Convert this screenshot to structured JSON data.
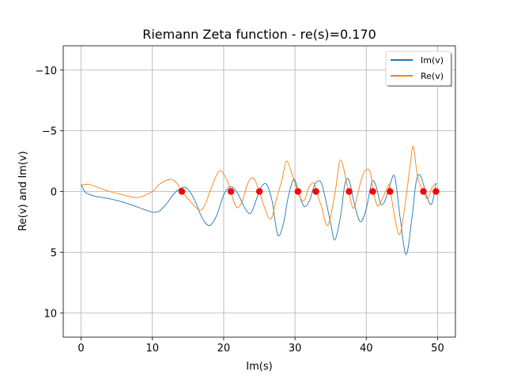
{
  "chart_data": {
    "type": "line",
    "title": "Riemann Zeta function - re(s)=0.170",
    "xlabel": "Im(s)",
    "ylabel": "Re(v) and Im(v)",
    "xlim": [
      -2.5,
      52.5
    ],
    "ylim": [
      -12,
      12
    ],
    "y_inverted": true,
    "grid": true,
    "legend_placement": "top-right",
    "x_ticks": [
      0,
      10,
      20,
      30,
      40,
      50
    ],
    "y_ticks": [
      -10,
      -5,
      0,
      5,
      10
    ],
    "x_tick_labels": [
      "0",
      "10",
      "20",
      "30",
      "40",
      "50"
    ],
    "y_tick_labels": [
      "−10",
      "−5",
      "0",
      "5",
      "10"
    ],
    "series": [
      {
        "name": "Im(v)",
        "color": "#1f77b4",
        "points": [
          [
            0,
            -0.6
          ],
          [
            0.5,
            0.0
          ],
          [
            1,
            0.2
          ],
          [
            2,
            0.4
          ],
          [
            4,
            0.6
          ],
          [
            6,
            0.9
          ],
          [
            8,
            1.3
          ],
          [
            10,
            1.7
          ],
          [
            11,
            1.6
          ],
          [
            12,
            1.0
          ],
          [
            13,
            0.2
          ],
          [
            14.1,
            -0.3
          ],
          [
            15,
            -0.2
          ],
          [
            16,
            0.8
          ],
          [
            17,
            2.2
          ],
          [
            18,
            2.8
          ],
          [
            19,
            2.0
          ],
          [
            20,
            0.3
          ],
          [
            21,
            -0.4
          ],
          [
            22,
            0.2
          ],
          [
            23,
            1.4
          ],
          [
            23.8,
            1.8
          ],
          [
            24.5,
            0.8
          ],
          [
            25.2,
            -0.3
          ],
          [
            26,
            -0.6
          ],
          [
            26.8,
            0.8
          ],
          [
            27.6,
            3.6
          ],
          [
            28.4,
            2.6
          ],
          [
            29,
            0.6
          ],
          [
            29.8,
            -1.0
          ],
          [
            30.4,
            -0.2
          ],
          [
            31.2,
            1.2
          ],
          [
            32,
            0.8
          ],
          [
            32.8,
            -0.6
          ],
          [
            33.6,
            -0.8
          ],
          [
            34.2,
            0.4
          ],
          [
            35,
            2.6
          ],
          [
            35.6,
            4.0
          ],
          [
            36.4,
            2.0
          ],
          [
            37,
            -0.6
          ],
          [
            37.6,
            -0.9
          ],
          [
            38.4,
            1.2
          ],
          [
            39.2,
            2.5
          ],
          [
            40,
            1.4
          ],
          [
            40.8,
            -0.8
          ],
          [
            41.4,
            -0.4
          ],
          [
            42,
            1.0
          ],
          [
            42.6,
            0.8
          ],
          [
            43.3,
            -0.5
          ],
          [
            44,
            -1.2
          ],
          [
            44.8,
            2.4
          ],
          [
            45.6,
            5.2
          ],
          [
            46.4,
            2.2
          ],
          [
            47,
            -0.8
          ],
          [
            47.6,
            -1.3
          ],
          [
            48.6,
            0.6
          ],
          [
            49.2,
            1.0
          ],
          [
            49.8,
            -0.7
          ]
        ]
      },
      {
        "name": "Re(v)",
        "color": "#ff7f0e",
        "points": [
          [
            0,
            -0.5
          ],
          [
            1,
            -0.6
          ],
          [
            2,
            -0.4
          ],
          [
            4,
            0.0
          ],
          [
            6,
            0.3
          ],
          [
            8,
            0.5
          ],
          [
            10,
            0.0
          ],
          [
            11,
            -0.6
          ],
          [
            12.5,
            -1.0
          ],
          [
            13.4,
            -0.7
          ],
          [
            14.1,
            0.0
          ],
          [
            15,
            0.6
          ],
          [
            16.5,
            1.5
          ],
          [
            17.3,
            1.2
          ],
          [
            18.2,
            -0.2
          ],
          [
            19.4,
            -1.7
          ],
          [
            20.4,
            -1.0
          ],
          [
            21,
            0.0
          ],
          [
            21.8,
            1.3
          ],
          [
            22.6,
            0.8
          ],
          [
            23.4,
            -0.7
          ],
          [
            24.2,
            -1.1
          ],
          [
            25,
            0.0
          ],
          [
            25.6,
            1.1
          ],
          [
            26.6,
            2.3
          ],
          [
            27.4,
            0.6
          ],
          [
            28.2,
            -1.0
          ],
          [
            28.8,
            -2.5
          ],
          [
            29.6,
            -1.4
          ],
          [
            30.4,
            0.0
          ],
          [
            31.2,
            0.8
          ],
          [
            32,
            -0.4
          ],
          [
            32.7,
            -0.7
          ],
          [
            33,
            0.0
          ],
          [
            33.7,
            1.2
          ],
          [
            34.6,
            2.8
          ],
          [
            35.6,
            0.2
          ],
          [
            36.4,
            -2.6
          ],
          [
            37.5,
            0.0
          ],
          [
            38.2,
            1.4
          ],
          [
            38.8,
            0.2
          ],
          [
            39.6,
            -1.5
          ],
          [
            40.5,
            -1.7
          ],
          [
            41,
            0.0
          ],
          [
            41.6,
            1.2
          ],
          [
            42.4,
            0.4
          ],
          [
            43.2,
            -0.6
          ],
          [
            43.4,
            0.0
          ],
          [
            44.2,
            2.8
          ],
          [
            44.8,
            3.4
          ],
          [
            45.6,
            0.4
          ],
          [
            46.2,
            -2.4
          ],
          [
            46.6,
            -3.7
          ],
          [
            47.2,
            -1.2
          ],
          [
            48,
            0.0
          ],
          [
            48.6,
            0.6
          ],
          [
            49.2,
            -0.3
          ],
          [
            49.8,
            -0.7
          ]
        ]
      }
    ],
    "zeros": {
      "color": "#ff0000",
      "x": [
        14.13,
        21.02,
        25.01,
        30.42,
        32.94,
        37.59,
        40.92,
        43.33,
        48.01,
        49.77
      ],
      "y": [
        0,
        0,
        0,
        0,
        0,
        0,
        0,
        0,
        0,
        0
      ]
    }
  }
}
